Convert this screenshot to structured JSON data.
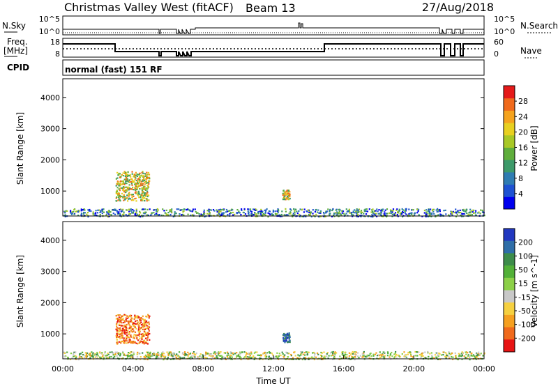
{
  "header": {
    "station": "Christmas Valley West (fitACF)",
    "beam": "Beam 13",
    "date": "27/Aug/2018",
    "cpid_label": "CPID",
    "cpid_value": "normal (fast) 151 RF"
  },
  "nsky_panel": {
    "left_label": "N.Sky",
    "right_label": "N.Search",
    "left_ticks": [
      "10^5",
      "10^0"
    ],
    "right_ticks": [
      "10^5",
      "10^0"
    ]
  },
  "freq_panel": {
    "left_label_1": "Freq.",
    "left_label_2": "[MHz]",
    "right_label": "Nave",
    "left_ticks": [
      "18",
      "8"
    ],
    "right_ticks": [
      "60",
      "0"
    ]
  },
  "chart_data": [
    {
      "type": "heatmap",
      "name": "power",
      "ylabel": "Slant Range [km]",
      "ylim": [
        200,
        4600
      ],
      "xlim_hours": [
        0,
        24
      ],
      "yticks": [
        1000,
        2000,
        3000,
        4000
      ],
      "colorbar": {
        "label": "Power [dB]",
        "range": [
          0,
          32
        ],
        "ticks": [
          "4",
          "8",
          "12",
          "16",
          "20",
          "24",
          "28"
        ],
        "colors": [
          "#0000ee",
          "#1e52d2",
          "#2f7cb2",
          "#3d9a6a",
          "#5fae3c",
          "#a8c826",
          "#e8d020",
          "#f5a31e",
          "#f06a1c",
          "#e51a1a"
        ]
      },
      "features": [
        {
          "label": "echo blob",
          "t_start": 3.0,
          "t_end": 4.9,
          "r_min": 700,
          "r_max": 1650
        },
        {
          "label": "near-range band",
          "t_start": 0.0,
          "t_end": 24.0,
          "r_min": 200,
          "r_max": 450
        },
        {
          "label": "patch",
          "t_start": 12.5,
          "t_end": 12.9,
          "r_min": 750,
          "r_max": 1050
        }
      ]
    },
    {
      "type": "heatmap",
      "name": "velocity",
      "ylabel": "Slant Range [km]",
      "ylim": [
        200,
        4600
      ],
      "xlim_hours": [
        0,
        24
      ],
      "yticks": [
        1000,
        2000,
        3000,
        4000
      ],
      "xticks": [
        "00:00",
        "04:00",
        "08:00",
        "12:00",
        "16:00",
        "20:00",
        "00:00"
      ],
      "xlabel": "Time UT",
      "colorbar": {
        "label": "Velocity [m s^-1]",
        "ticks": [
          "200",
          "100",
          "50",
          "15",
          "-15",
          "-50",
          "-100",
          "-200"
        ],
        "colors": [
          "#2238c0",
          "#2f6ea8",
          "#3d8c4a",
          "#52b038",
          "#8cd048",
          "#c8c8c8",
          "#f5d040",
          "#f5a020",
          "#f06a1c",
          "#e81414"
        ]
      },
      "features": [
        {
          "label": "echo blob",
          "t_start": 3.0,
          "t_end": 4.9,
          "r_min": 700,
          "r_max": 1650
        },
        {
          "label": "near-range band",
          "t_start": 0.0,
          "t_end": 24.0,
          "r_min": 200,
          "r_max": 450
        },
        {
          "label": "patch",
          "t_start": 12.5,
          "t_end": 12.9,
          "r_min": 750,
          "r_max": 1050
        }
      ]
    }
  ]
}
